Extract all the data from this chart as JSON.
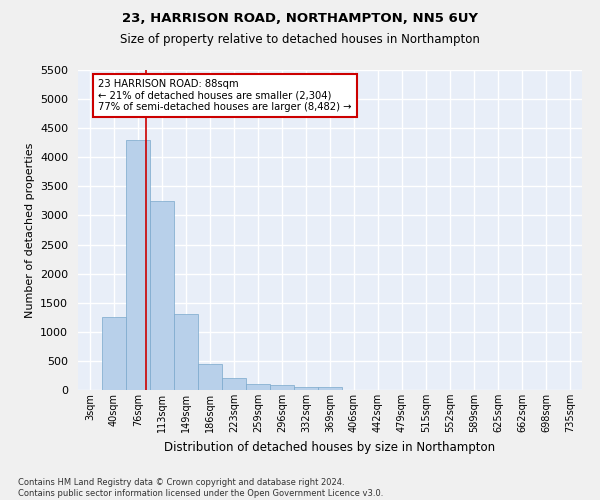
{
  "title1": "23, HARRISON ROAD, NORTHAMPTON, NN5 6UY",
  "title2": "Size of property relative to detached houses in Northampton",
  "xlabel": "Distribution of detached houses by size in Northampton",
  "ylabel": "Number of detached properties",
  "footnote": "Contains HM Land Registry data © Crown copyright and database right 2024.\nContains public sector information licensed under the Open Government Licence v3.0.",
  "bar_labels": [
    "3sqm",
    "40sqm",
    "76sqm",
    "113sqm",
    "149sqm",
    "186sqm",
    "223sqm",
    "259sqm",
    "296sqm",
    "332sqm",
    "369sqm",
    "406sqm",
    "442sqm",
    "479sqm",
    "515sqm",
    "552sqm",
    "589sqm",
    "625sqm",
    "662sqm",
    "698sqm",
    "735sqm"
  ],
  "bar_values": [
    0,
    1250,
    4300,
    3250,
    1300,
    450,
    200,
    100,
    80,
    60,
    50,
    0,
    0,
    0,
    0,
    0,
    0,
    0,
    0,
    0,
    0
  ],
  "bar_color": "#b8d0ea",
  "bar_edge_color": "#7aa8cc",
  "bg_color": "#e8eef8",
  "grid_color": "#ffffff",
  "red_line_x": 2.33,
  "annotation_text": "23 HARRISON ROAD: 88sqm\n← 21% of detached houses are smaller (2,304)\n77% of semi-detached houses are larger (8,482) →",
  "annotation_box_color": "#ffffff",
  "annotation_box_edge": "#cc0000",
  "ylim": [
    0,
    5500
  ],
  "yticks": [
    0,
    500,
    1000,
    1500,
    2000,
    2500,
    3000,
    3500,
    4000,
    4500,
    5000,
    5500
  ]
}
